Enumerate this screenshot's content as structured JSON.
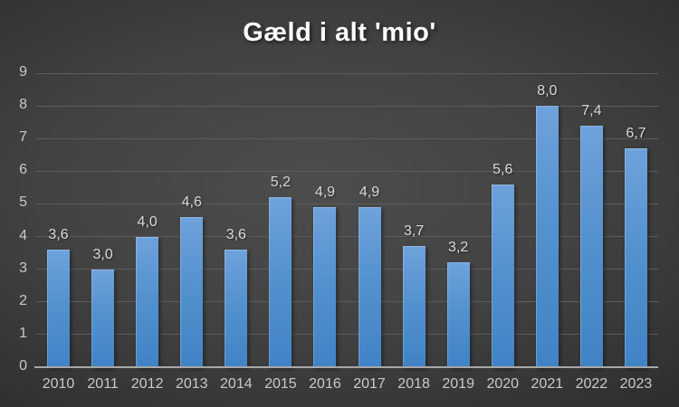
{
  "chart_data": {
    "type": "bar",
    "title": "Gæld i alt 'mio'",
    "categories": [
      "2010",
      "2011",
      "2012",
      "2013",
      "2014",
      "2015",
      "2016",
      "2017",
      "2018",
      "2019",
      "2020",
      "2021",
      "2022",
      "2023"
    ],
    "values": [
      3.6,
      3.0,
      4.0,
      4.6,
      3.6,
      5.2,
      4.9,
      4.9,
      3.7,
      3.2,
      5.6,
      8.0,
      7.4,
      6.7
    ],
    "value_labels": [
      "3,6",
      "3,0",
      "4,0",
      "4,6",
      "3,6",
      "5,2",
      "4,9",
      "4,9",
      "3,7",
      "3,2",
      "5,6",
      "8,0",
      "7,4",
      "6,7"
    ],
    "xlabel": "",
    "ylabel": "",
    "ylim": [
      0,
      9
    ],
    "yticks": [
      0,
      1,
      2,
      3,
      4,
      5,
      6,
      7,
      8,
      9
    ],
    "ytick_labels": [
      "0",
      "1",
      "2",
      "3",
      "4",
      "5",
      "6",
      "7",
      "8",
      "9"
    ],
    "grid": true,
    "legend": false,
    "decimal_separator": ",",
    "colors": {
      "bar_top": "#6FA2DC",
      "bar_bottom": "#4083C5",
      "background_center": "#4d4d4d",
      "background_edge": "#1e1e1e",
      "gridline": "#5c5c5c",
      "axis_line": "#a8a8a8",
      "tick_text": "#c9c9c9",
      "data_label_text": "#d9d9d9",
      "title_text": "#ffffff"
    }
  }
}
